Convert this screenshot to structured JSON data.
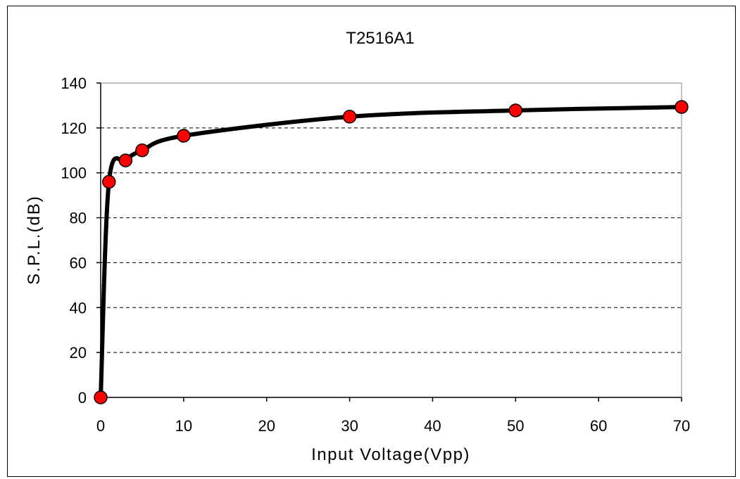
{
  "chart_data": {
    "type": "line",
    "title": "T2516A1",
    "xlabel": "Input Voltage(Vpp)",
    "ylabel": "S.P.L.(dB)",
    "xlim": [
      0,
      70
    ],
    "ylim": [
      0,
      140
    ],
    "x_ticks": [
      0,
      10,
      20,
      30,
      40,
      50,
      60,
      70
    ],
    "y_ticks": [
      0,
      20,
      40,
      60,
      80,
      100,
      120,
      140
    ],
    "x_tick_labels": [
      "0",
      "10",
      "20",
      "30",
      "40",
      "50",
      "60",
      "70"
    ],
    "y_tick_labels": [
      "0",
      "20",
      "40",
      "60",
      "80",
      "100",
      "120",
      "140"
    ],
    "grid": "horizontal dashed",
    "legend": "none",
    "series": [
      {
        "x": [
          0,
          1,
          3,
          5,
          10,
          30,
          50,
          70
        ],
        "y": [
          0,
          96,
          105.5,
          110,
          116.5,
          125,
          127.8,
          129.3
        ]
      }
    ],
    "colors": {
      "line": "#000000",
      "marker_fill": "#ff0000",
      "marker_stroke": "#000000",
      "grid": "#000000"
    }
  }
}
